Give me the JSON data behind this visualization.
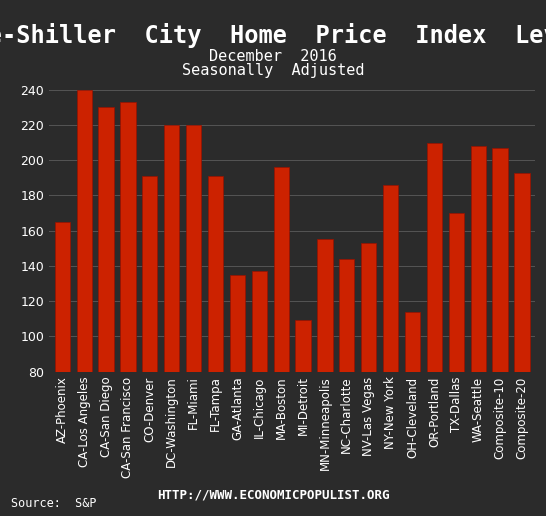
{
  "title": "Case-Shiller  City  Home  Price  Index  Levels",
  "subtitle1": "December  2016",
  "subtitle2": "Seasonally  Adjusted",
  "source": "Source:  S&P",
  "url": "HTTP://WWW.ECONOMICPOPULIST.ORG",
  "categories": [
    "AZ-Phoenix",
    "CA-Los Angeles",
    "CA-San Diego",
    "CA-San Francisco",
    "CO-Denver",
    "DC-Washington",
    "FL-Miami",
    "FL-Tampa",
    "GA-Atlanta",
    "IL-Chicago",
    "MA-Boston",
    "MI-Detroit",
    "MN-Minneapolis",
    "NC-Charlotte",
    "NV-Las Vegas",
    "NY-New York",
    "OH-Cleveland",
    "OR-Portland",
    "TX-Dallas",
    "WA-Seattle",
    "Composite-10",
    "Composite-20"
  ],
  "values": [
    165,
    240,
    230,
    233,
    191,
    220,
    220,
    191,
    135,
    137,
    196,
    109,
    155,
    144,
    153,
    186,
    114,
    210,
    170,
    208,
    207,
    193
  ],
  "bar_color": "#cc2200",
  "bar_edge_color": "#991100",
  "background_color": "#2b2b2b",
  "text_color": "#ffffff",
  "grid_color": "#555555",
  "ylim": [
    80,
    250
  ],
  "yticks": [
    80,
    100,
    120,
    140,
    160,
    180,
    200,
    220,
    240
  ],
  "title_fontsize": 17,
  "subtitle_fontsize": 11,
  "axis_label_fontsize": 8.5,
  "tick_fontsize": 9
}
